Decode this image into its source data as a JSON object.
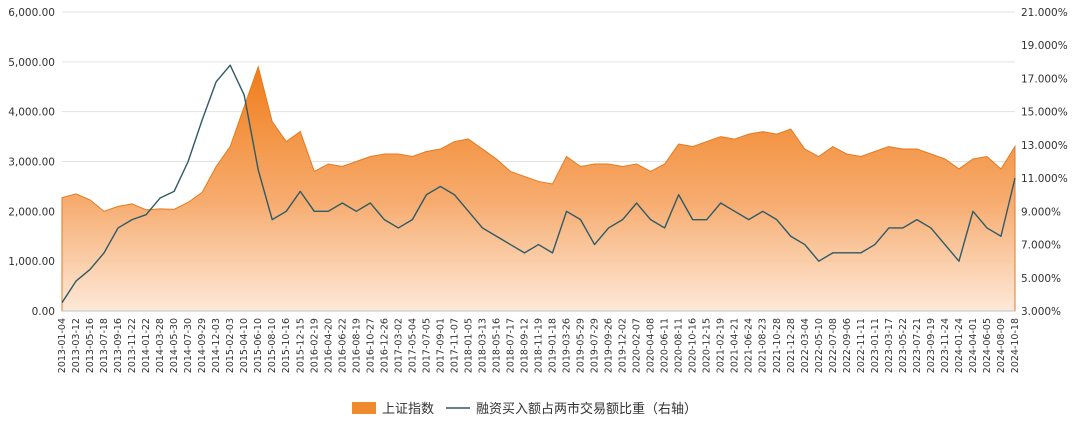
{
  "chart_data": {
    "type": "area",
    "legend_position": "bottom",
    "grid": true,
    "x": [
      "2013-01-04",
      "2013-03-12",
      "2013-05-16",
      "2013-07-18",
      "2013-09-16",
      "2013-11-22",
      "2014-01-22",
      "2014-03-28",
      "2014-05-30",
      "2014-07-30",
      "2014-09-29",
      "2014-12-03",
      "2015-02-03",
      "2015-04-10",
      "2015-06-10",
      "2015-08-10",
      "2015-10-16",
      "2015-12-15",
      "2016-02-19",
      "2016-04-20",
      "2016-06-22",
      "2016-08-19",
      "2016-10-27",
      "2016-12-26",
      "2017-03-02",
      "2017-05-04",
      "2017-07-05",
      "2017-09-01",
      "2017-11-07",
      "2018-01-05",
      "2018-03-13",
      "2018-05-16",
      "2018-07-17",
      "2018-09-12",
      "2018-11-19",
      "2019-01-18",
      "2019-03-26",
      "2019-05-29",
      "2019-07-29",
      "2019-09-26",
      "2019-12-02",
      "2020-02-07",
      "2020-04-08",
      "2020-06-11",
      "2020-08-11",
      "2020-10-16",
      "2020-12-15",
      "2021-02-19",
      "2021-04-21",
      "2021-06-24",
      "2021-08-23",
      "2021-10-28",
      "2021-12-28",
      "2022-03-04",
      "2022-05-10",
      "2022-07-08",
      "2022-09-06",
      "2022-11-11",
      "2023-01-11",
      "2023-03-17",
      "2023-05-22",
      "2023-07-21",
      "2023-09-19",
      "2023-11-24",
      "2024-01-24",
      "2024-04-01",
      "2024-06-05",
      "2024-08-09",
      "2024-10-18"
    ],
    "y_left": {
      "ticks": [
        "0.00",
        "1,000.00",
        "2,000.00",
        "3,000.00",
        "4,000.00",
        "5,000.00",
        "6,000.00"
      ],
      "min": 0,
      "max": 6000
    },
    "y_right": {
      "ticks": [
        "3.000%",
        "5.000%",
        "7.000%",
        "9.000%",
        "11.000%",
        "13.000%",
        "15.000%",
        "17.000%",
        "19.000%",
        "21.000%"
      ],
      "min": 3,
      "max": 21
    },
    "series": [
      {
        "name": "上证指数",
        "axis": "left",
        "kind": "area",
        "color": "#f08a2e",
        "values": [
          2276,
          2350,
          2230,
          2000,
          2100,
          2150,
          2030,
          2050,
          2040,
          2180,
          2380,
          2900,
          3300,
          4100,
          4900,
          3800,
          3400,
          3600,
          2800,
          2950,
          2900,
          3000,
          3100,
          3150,
          3150,
          3100,
          3200,
          3250,
          3400,
          3450,
          3250,
          3050,
          2800,
          2700,
          2600,
          2550,
          3100,
          2900,
          2950,
          2950,
          2900,
          2950,
          2800,
          2950,
          3350,
          3300,
          3400,
          3500,
          3450,
          3550,
          3600,
          3550,
          3650,
          3250,
          3100,
          3300,
          3150,
          3100,
          3200,
          3300,
          3250,
          3250,
          3150,
          3050,
          2850,
          3050,
          3100,
          2850,
          3300
        ]
      },
      {
        "name": "融资买入额占两市交易额比重（右轴）",
        "axis": "right",
        "kind": "line",
        "color": "#2e5a66",
        "values": [
          3.5,
          4.8,
          5.5,
          6.5,
          8.0,
          8.5,
          8.8,
          9.8,
          10.2,
          12.0,
          14.5,
          16.8,
          17.8,
          16.0,
          11.5,
          8.5,
          9.0,
          10.2,
          9.0,
          9.0,
          9.5,
          9.0,
          9.5,
          8.5,
          8.0,
          8.5,
          10.0,
          10.5,
          10.0,
          9.0,
          8.0,
          7.5,
          7.0,
          6.5,
          7.0,
          6.5,
          9.0,
          8.5,
          7.0,
          8.0,
          8.5,
          9.5,
          8.5,
          8.0,
          10.0,
          8.5,
          8.5,
          9.5,
          9.0,
          8.5,
          9.0,
          8.5,
          7.5,
          7.0,
          6.0,
          6.5,
          6.5,
          6.5,
          7.0,
          8.0,
          8.0,
          8.5,
          8.0,
          7.0,
          6.0,
          9.0,
          8.0,
          7.5,
          11.0
        ]
      }
    ]
  }
}
